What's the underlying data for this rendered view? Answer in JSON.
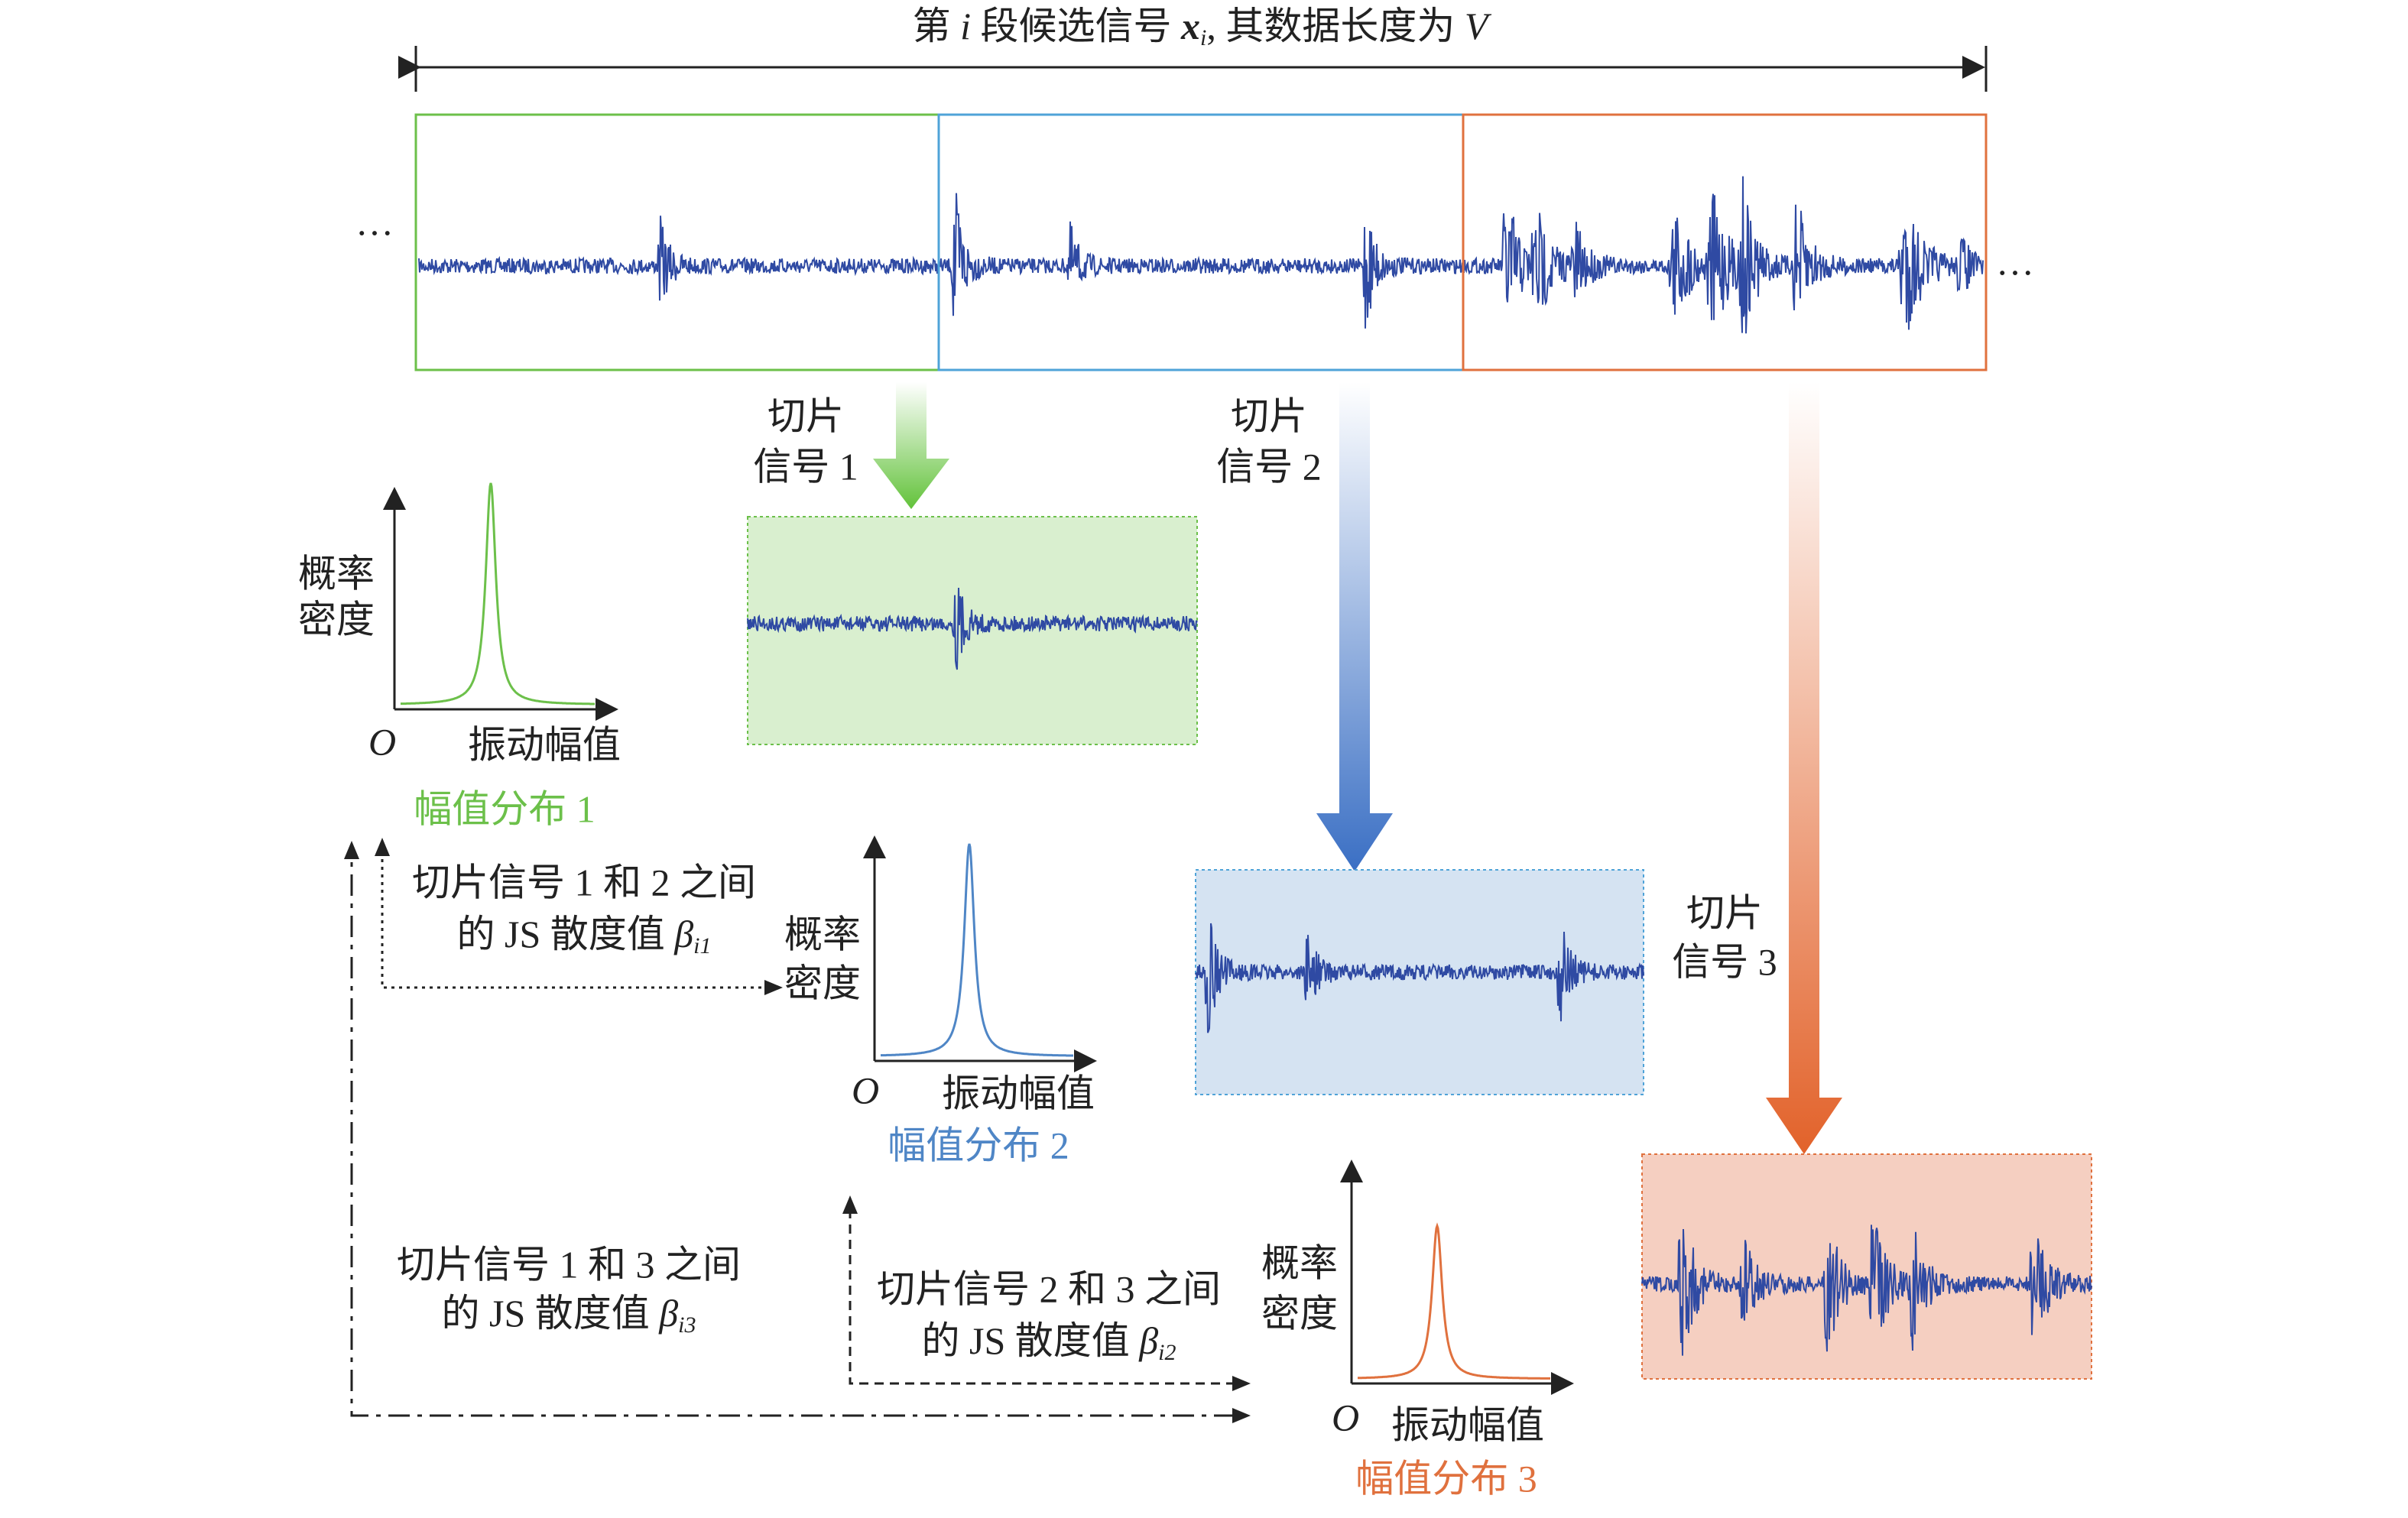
{
  "header": {
    "title_parts": [
      "第 ",
      "i",
      " 段候选信号 ",
      "x",
      "i",
      ", 其数据长度为 ",
      "V"
    ]
  },
  "ellipsis_left": "…",
  "ellipsis_right": "…",
  "slices": [
    {
      "line1": "切片",
      "line2": "信号 1"
    },
    {
      "line1": "切片",
      "line2": "信号 2"
    },
    {
      "line1": "切片",
      "line2": "信号 3"
    }
  ],
  "distributions": [
    {
      "y_label_1": "概率",
      "y_label_2": "密度",
      "origin": "O",
      "x_label": "振动幅值",
      "caption": "幅值分布 1"
    },
    {
      "y_label_1": "概率",
      "y_label_2": "密度",
      "origin": "O",
      "x_label": "振动幅值",
      "caption": "幅值分布 2"
    },
    {
      "y_label_1": "概率",
      "y_label_2": "密度",
      "origin": "O",
      "x_label": "振动幅值",
      "caption": "幅值分布 3"
    }
  ],
  "divergences": [
    {
      "line1": "切片信号 1 和 2 之间",
      "line2": "的 JS 散度值 ",
      "beta": "β",
      "sub": "i1"
    },
    {
      "line1": "切片信号 2 和 3 之间",
      "line2": "的 JS 散度值 ",
      "beta": "β",
      "sub": "i2"
    },
    {
      "line1": "切片信号 1 和 3 之间",
      "line2": "的 JS 散度值 ",
      "beta": "β",
      "sub": "i3"
    }
  ]
}
